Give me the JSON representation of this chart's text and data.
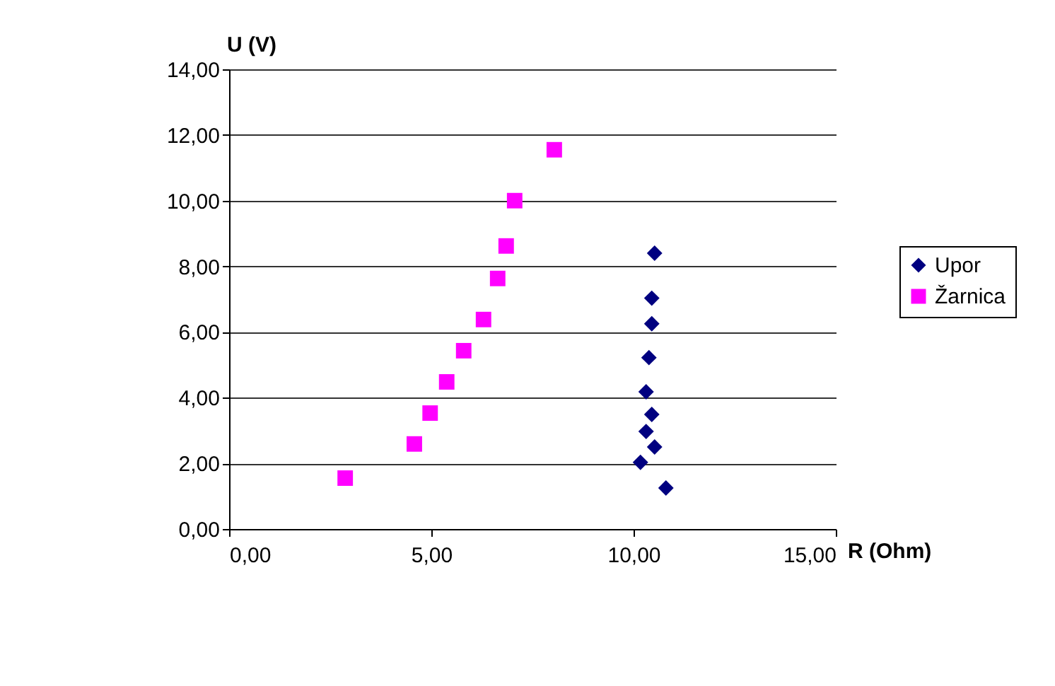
{
  "chart_data": {
    "type": "scatter",
    "xlabel": "R (Ohm)",
    "ylabel": "U (V)",
    "xlim": [
      0,
      15
    ],
    "ylim": [
      0,
      14
    ],
    "xticks": [
      {
        "value": 0,
        "label": "0,00"
      },
      {
        "value": 5,
        "label": "5,00"
      },
      {
        "value": 10,
        "label": "10,00"
      },
      {
        "value": 15,
        "label": "15,00"
      }
    ],
    "yticks": [
      {
        "value": 0,
        "label": "0,00"
      },
      {
        "value": 2,
        "label": "2,00"
      },
      {
        "value": 4,
        "label": "4,00"
      },
      {
        "value": 6,
        "label": "6,00"
      },
      {
        "value": 8,
        "label": "8,00"
      },
      {
        "value": 10,
        "label": "10,00"
      },
      {
        "value": 12,
        "label": "12,00"
      },
      {
        "value": 14,
        "label": "14,00"
      }
    ],
    "grid": "y",
    "legend": "right",
    "series": [
      {
        "name": "Upor",
        "color": "#000080",
        "marker": "diamond",
        "x": [
          10.52,
          10.45,
          10.45,
          10.38,
          10.31,
          10.45,
          10.31,
          10.52,
          10.17,
          10.8
        ],
        "values": [
          8.4,
          7.03,
          6.25,
          5.22,
          4.18,
          3.49,
          2.97,
          2.5,
          2.03,
          1.25
        ]
      },
      {
        "name": "Žarnica",
        "color": "#ff00ff",
        "marker": "square",
        "x": [
          2.87,
          4.58,
          4.97,
          5.38,
          5.8,
          6.29,
          6.64,
          6.85,
          7.06,
          8.04
        ],
        "values": [
          1.55,
          2.59,
          3.53,
          4.48,
          5.43,
          6.38,
          7.63,
          8.62,
          10.0,
          11.55
        ]
      }
    ]
  }
}
